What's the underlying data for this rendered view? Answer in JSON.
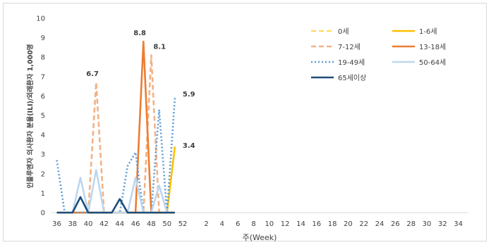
{
  "chart_data": {
    "type": "line",
    "xlabel": "주(Week)",
    "ylabel": "인플루엔자 의사환자 분율(ILI)/외래환자 1,000명",
    "ylim": [
      0,
      10
    ],
    "yticks": [
      0,
      1,
      2,
      3,
      4,
      5,
      6,
      7,
      8,
      9,
      10
    ],
    "x_ticks": [
      "36",
      "38",
      "40",
      "42",
      "44",
      "46",
      "48",
      "50",
      "52",
      "2",
      "4",
      "6",
      "8",
      "10",
      "12",
      "14",
      "16",
      "18",
      "20",
      "22",
      "24",
      "26",
      "28",
      "30",
      "32",
      "34"
    ],
    "x": [
      36,
      37,
      38,
      39,
      40,
      41,
      42,
      43,
      44,
      45,
      46,
      47,
      48,
      49,
      50,
      51
    ],
    "grid": false,
    "legend_position": "top-right",
    "series": [
      {
        "name": "0세",
        "color": "#ffd966",
        "dash": "dashed",
        "values": [
          0,
          0,
          0,
          0,
          0,
          0,
          0,
          0,
          0,
          0,
          0,
          0,
          0,
          0,
          0,
          0
        ]
      },
      {
        "name": "1-6세",
        "color": "#ffc000",
        "dash": "solid",
        "values": [
          0,
          0,
          0,
          0,
          0,
          0,
          0,
          0,
          0,
          0,
          0,
          0,
          0,
          0,
          0,
          3.4
        ]
      },
      {
        "name": "7-12세",
        "color": "#f4b183",
        "dash": "dashed",
        "values": [
          0,
          0,
          0,
          0,
          0,
          6.7,
          0,
          0,
          0,
          0,
          0,
          0,
          8.1,
          0,
          0,
          0
        ]
      },
      {
        "name": "13-18세",
        "color": "#ed7d31",
        "dash": "solid",
        "values": [
          0,
          0,
          0,
          0,
          0,
          0,
          0,
          0,
          0,
          0,
          0,
          8.8,
          0,
          0,
          0,
          0
        ]
      },
      {
        "name": "19-49세",
        "color": "#5b9bd5",
        "dash": "dotted",
        "values": [
          2.7,
          0,
          0,
          0,
          0,
          0,
          0,
          0,
          0,
          2.4,
          3.1,
          0,
          0,
          5.3,
          0,
          5.9
        ]
      },
      {
        "name": "50-64세",
        "color": "#bdd7ee",
        "dash": "solid",
        "values": [
          0,
          0,
          0,
          1.8,
          0,
          2.2,
          0,
          0,
          0,
          0,
          1.8,
          0,
          0,
          1.4,
          0,
          0
        ]
      },
      {
        "name": "65세이상",
        "color": "#1f4e79",
        "dash": "solid",
        "values": [
          0,
          0,
          0,
          0.8,
          0,
          0,
          0,
          0,
          0.7,
          0,
          0,
          0,
          0,
          0,
          0,
          0
        ]
      }
    ],
    "data_labels": [
      {
        "x": 41,
        "y": 6.7,
        "text": "6.7"
      },
      {
        "x": 47,
        "y": 8.8,
        "text": "8.8"
      },
      {
        "x": 48,
        "y": 8.1,
        "text": "8.1"
      },
      {
        "x": 51,
        "y": 5.9,
        "text": "5.9"
      },
      {
        "x": 51,
        "y": 3.4,
        "text": "3.4"
      }
    ]
  }
}
